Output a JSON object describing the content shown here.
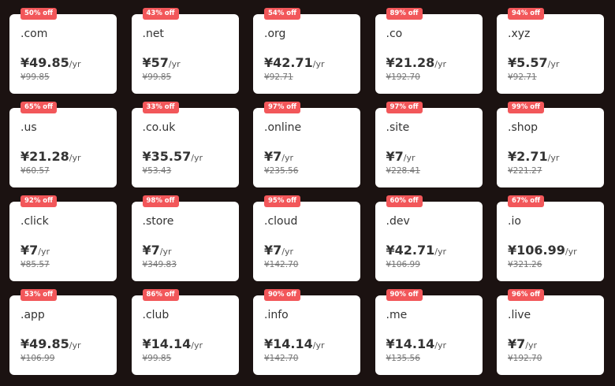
{
  "accent": "#f2575a",
  "per_label": "/yr",
  "domains": [
    {
      "discount": "50% off",
      "tld": ".com",
      "price": "¥49.85",
      "original": "¥99.85"
    },
    {
      "discount": "43% off",
      "tld": ".net",
      "price": "¥57",
      "original": "¥99.85"
    },
    {
      "discount": "54% off",
      "tld": ".org",
      "price": "¥42.71",
      "original": "¥92.71"
    },
    {
      "discount": "89% off",
      "tld": ".co",
      "price": "¥21.28",
      "original": "¥192.70"
    },
    {
      "discount": "94% off",
      "tld": ".xyz",
      "price": "¥5.57",
      "original": "¥92.71"
    },
    {
      "discount": "65% off",
      "tld": ".us",
      "price": "¥21.28",
      "original": "¥60.57"
    },
    {
      "discount": "33% off",
      "tld": ".co.uk",
      "price": "¥35.57",
      "original": "¥53.43"
    },
    {
      "discount": "97% off",
      "tld": ".online",
      "price": "¥7",
      "original": "¥235.56"
    },
    {
      "discount": "97% off",
      "tld": ".site",
      "price": "¥7",
      "original": "¥228.41"
    },
    {
      "discount": "99% off",
      "tld": ".shop",
      "price": "¥2.71",
      "original": "¥221.27"
    },
    {
      "discount": "92% off",
      "tld": ".click",
      "price": "¥7",
      "original": "¥85.57"
    },
    {
      "discount": "98% off",
      "tld": ".store",
      "price": "¥7",
      "original": "¥349.83"
    },
    {
      "discount": "95% off",
      "tld": ".cloud",
      "price": "¥7",
      "original": "¥142.70"
    },
    {
      "discount": "60% off",
      "tld": ".dev",
      "price": "¥42.71",
      "original": "¥106.99"
    },
    {
      "discount": "67% off",
      "tld": ".io",
      "price": "¥106.99",
      "original": "¥321.26"
    },
    {
      "discount": "53% off",
      "tld": ".app",
      "price": "¥49.85",
      "original": "¥106.99"
    },
    {
      "discount": "86% off",
      "tld": ".club",
      "price": "¥14.14",
      "original": "¥99.85"
    },
    {
      "discount": "90% off",
      "tld": ".info",
      "price": "¥14.14",
      "original": "¥142.70"
    },
    {
      "discount": "90% off",
      "tld": ".me",
      "price": "¥14.14",
      "original": "¥135.56"
    },
    {
      "discount": "96% off",
      "tld": ".live",
      "price": "¥7",
      "original": "¥192.70"
    }
  ]
}
